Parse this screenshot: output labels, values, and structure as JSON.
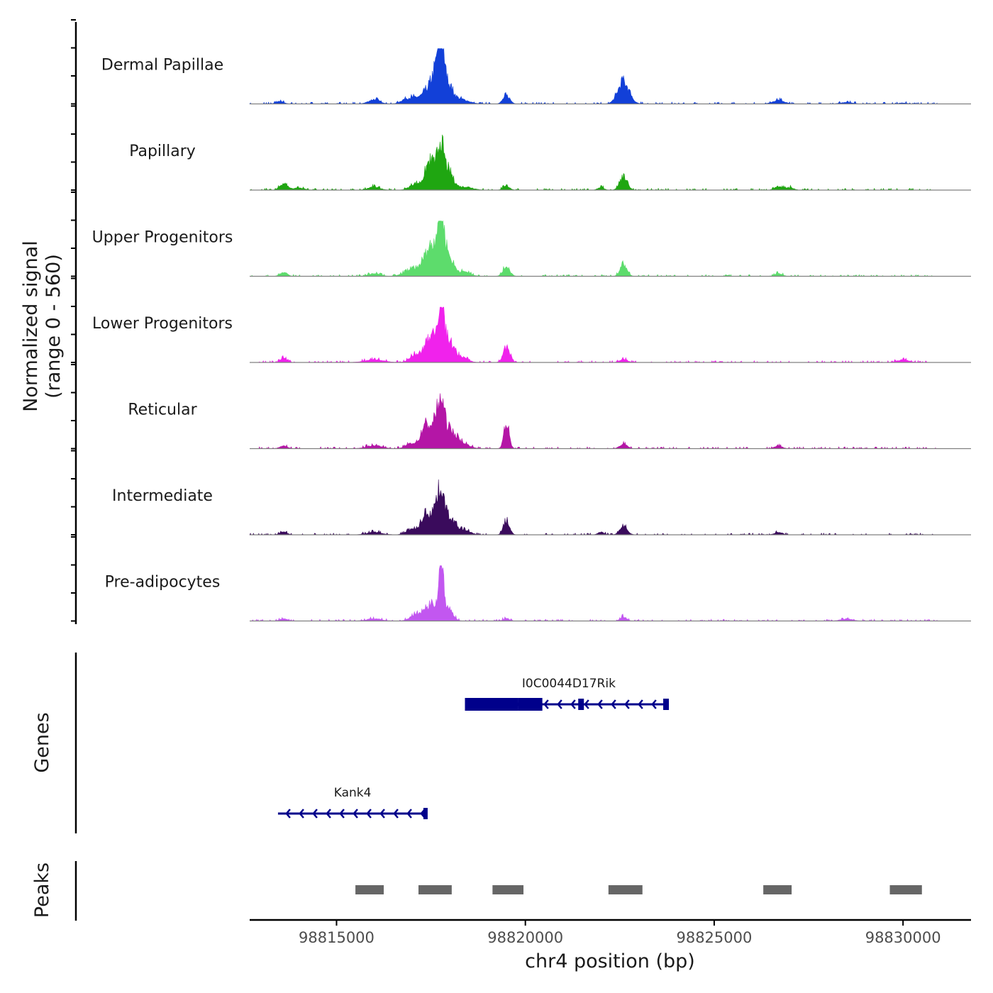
{
  "chart_data": {
    "type": "coverage",
    "chromosome": "chr4",
    "xlabel": "chr4 position (bp)",
    "ylabel": [
      "Normalized signal",
      "(range 0 - 560)"
    ],
    "xlim": [
      98812700,
      98831800
    ],
    "x_ticks": [
      {
        "value": 98815000,
        "label": "98815000"
      },
      {
        "value": 98820000,
        "label": "98820000"
      },
      {
        "value": 98825000,
        "label": "98825000"
      },
      {
        "value": 98830000,
        "label": "98830000"
      }
    ],
    "signal_range": [
      0,
      560
    ],
    "signal_start": 98812700,
    "signal_end": 98830900,
    "tracks": [
      {
        "name": "Dermal Papillae",
        "color": "#1240d8",
        "peaks": [
          [
            98816000,
            0.08,
            150
          ],
          [
            98816800,
            0.05,
            120
          ],
          [
            98817100,
            0.12,
            200
          ],
          [
            98817400,
            0.18,
            110
          ],
          [
            98817620,
            0.52,
            110
          ],
          [
            98817760,
            0.98,
            70
          ],
          [
            98817900,
            0.4,
            150
          ],
          [
            98818300,
            0.08,
            200
          ],
          [
            98819500,
            0.15,
            90
          ],
          [
            98822600,
            0.4,
            150
          ],
          [
            98826700,
            0.07,
            150
          ],
          [
            98813500,
            0.05,
            100
          ],
          [
            98828500,
            0.03,
            150
          ],
          [
            98830000,
            0.02,
            100
          ]
        ]
      },
      {
        "name": "Papillary",
        "color": "#1fa611",
        "peaks": [
          [
            98813600,
            0.12,
            100
          ],
          [
            98814000,
            0.04,
            150
          ],
          [
            98816000,
            0.06,
            150
          ],
          [
            98817100,
            0.12,
            150
          ],
          [
            98817400,
            0.25,
            100
          ],
          [
            98817550,
            0.4,
            120
          ],
          [
            98817760,
            0.72,
            80
          ],
          [
            98817950,
            0.35,
            130
          ],
          [
            98818400,
            0.06,
            200
          ],
          [
            98819500,
            0.07,
            90
          ],
          [
            98822600,
            0.22,
            100
          ],
          [
            98822000,
            0.05,
            80
          ],
          [
            98826700,
            0.07,
            100
          ],
          [
            98827000,
            0.05,
            100
          ]
        ]
      },
      {
        "name": "Upper Progenitors",
        "color": "#5ddc6c",
        "peaks": [
          [
            98813600,
            0.08,
            90
          ],
          [
            98816000,
            0.05,
            150
          ],
          [
            98817000,
            0.12,
            200
          ],
          [
            98817350,
            0.25,
            130
          ],
          [
            98817550,
            0.45,
            120
          ],
          [
            98817760,
            0.95,
            90
          ],
          [
            98817950,
            0.35,
            150
          ],
          [
            98818400,
            0.08,
            150
          ],
          [
            98819500,
            0.18,
            90
          ],
          [
            98822600,
            0.22,
            90
          ],
          [
            98826700,
            0.05,
            100
          ]
        ]
      },
      {
        "name": "Lower Progenitors",
        "color": "#f022ec",
        "peaks": [
          [
            98813600,
            0.08,
            90
          ],
          [
            98816000,
            0.05,
            250
          ],
          [
            98817100,
            0.15,
            150
          ],
          [
            98817400,
            0.3,
            100
          ],
          [
            98817600,
            0.45,
            100
          ],
          [
            98817770,
            1.0,
            70
          ],
          [
            98817950,
            0.4,
            140
          ],
          [
            98818300,
            0.1,
            160
          ],
          [
            98819500,
            0.25,
            90
          ],
          [
            98822600,
            0.06,
            100
          ],
          [
            98830000,
            0.05,
            150
          ]
        ]
      },
      {
        "name": "Reticular",
        "color": "#b416a6",
        "peaks": [
          [
            98813600,
            0.05,
            100
          ],
          [
            98816000,
            0.06,
            200
          ],
          [
            98817000,
            0.1,
            150
          ],
          [
            98817350,
            0.4,
            110
          ],
          [
            98817600,
            0.4,
            110
          ],
          [
            98817770,
            0.7,
            90
          ],
          [
            98818000,
            0.3,
            150
          ],
          [
            98818300,
            0.1,
            200
          ],
          [
            98819500,
            0.45,
            70
          ],
          [
            98822600,
            0.08,
            100
          ],
          [
            98826700,
            0.05,
            100
          ]
        ]
      },
      {
        "name": "Intermediate",
        "color": "#3a0b5c",
        "peaks": [
          [
            98813600,
            0.06,
            90
          ],
          [
            98816000,
            0.05,
            200
          ],
          [
            98817000,
            0.1,
            150
          ],
          [
            98817350,
            0.35,
            110
          ],
          [
            98817600,
            0.4,
            110
          ],
          [
            98817770,
            0.65,
            90
          ],
          [
            98818000,
            0.3,
            150
          ],
          [
            98818400,
            0.08,
            150
          ],
          [
            98819500,
            0.25,
            80
          ],
          [
            98822600,
            0.15,
            100
          ],
          [
            98822000,
            0.05,
            80
          ],
          [
            98826700,
            0.05,
            100
          ]
        ]
      },
      {
        "name": "Pre-adipocytes",
        "color": "#c257f0",
        "peaks": [
          [
            98813600,
            0.04,
            100
          ],
          [
            98816000,
            0.04,
            200
          ],
          [
            98817100,
            0.12,
            150
          ],
          [
            98817400,
            0.2,
            120
          ],
          [
            98817600,
            0.25,
            100
          ],
          [
            98817770,
            0.98,
            60
          ],
          [
            98817950,
            0.25,
            120
          ],
          [
            98819500,
            0.05,
            80
          ],
          [
            98822600,
            0.08,
            80
          ],
          [
            98828500,
            0.04,
            150
          ]
        ]
      }
    ],
    "genes": [
      {
        "name": "I0C0044D17Rik",
        "strand": "-",
        "start": 98818500,
        "end": 98823800,
        "color": "#00008b",
        "exons": [
          [
            98818400,
            98819800,
            "thick"
          ],
          [
            98819800,
            98820450,
            "thick"
          ],
          [
            98821400,
            98821550,
            "thin"
          ],
          [
            98823650,
            98823800,
            "thin"
          ]
        ]
      },
      {
        "name": "Kank4",
        "strand": "-",
        "start": 98813450,
        "end": 98817400,
        "color": "#00008b",
        "exons": [
          [
            98817300,
            98817400,
            "thin"
          ]
        ]
      }
    ],
    "peaks_track": {
      "label": "Peaks",
      "color": "#666666",
      "regions": [
        [
          98815500,
          98816250
        ],
        [
          98817170,
          98818050
        ],
        [
          98819130,
          98819950
        ],
        [
          98822200,
          98823100
        ],
        [
          98826300,
          98827050
        ],
        [
          98829650,
          98830500
        ]
      ]
    },
    "genes_label": "Genes"
  }
}
